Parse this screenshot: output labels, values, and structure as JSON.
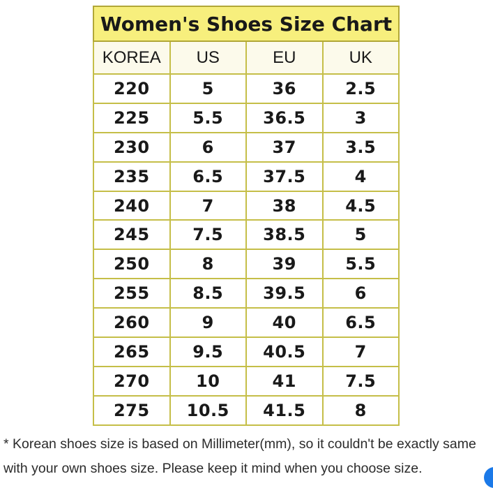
{
  "chart_data": {
    "type": "table",
    "title": "Women's Shoes Size Chart",
    "columns": [
      "KOREA",
      "US",
      "EU",
      "UK"
    ],
    "rows": [
      [
        "220",
        "5",
        "36",
        "2.5"
      ],
      [
        "225",
        "5.5",
        "36.5",
        "3"
      ],
      [
        "230",
        "6",
        "37",
        "3.5"
      ],
      [
        "235",
        "6.5",
        "37.5",
        "4"
      ],
      [
        "240",
        "7",
        "38",
        "4.5"
      ],
      [
        "245",
        "7.5",
        "38.5",
        "5"
      ],
      [
        "250",
        "8",
        "39",
        "5.5"
      ],
      [
        "255",
        "8.5",
        "39.5",
        "6"
      ],
      [
        "260",
        "9",
        "40",
        "6.5"
      ],
      [
        "265",
        "9.5",
        "40.5",
        "7"
      ],
      [
        "270",
        "10",
        "41",
        "7.5"
      ],
      [
        "275",
        "10.5",
        "41.5",
        "8"
      ]
    ],
    "layout": {
      "legend": "none",
      "grid": "on"
    }
  },
  "footnote": {
    "line1": "* Korean shoes size is based on Millimeter(mm), so it couldn't be exactly same",
    "line2": "with your own shoes size. Please keep it mind when you choose size."
  },
  "chat_button": {
    "color": "#1b79e8"
  },
  "colors": {
    "title_background": "#f7ef7d",
    "header_background": "#fcfaeb",
    "table_border": "#c5be48",
    "title_border": "#b1a737",
    "text": "#191919"
  }
}
